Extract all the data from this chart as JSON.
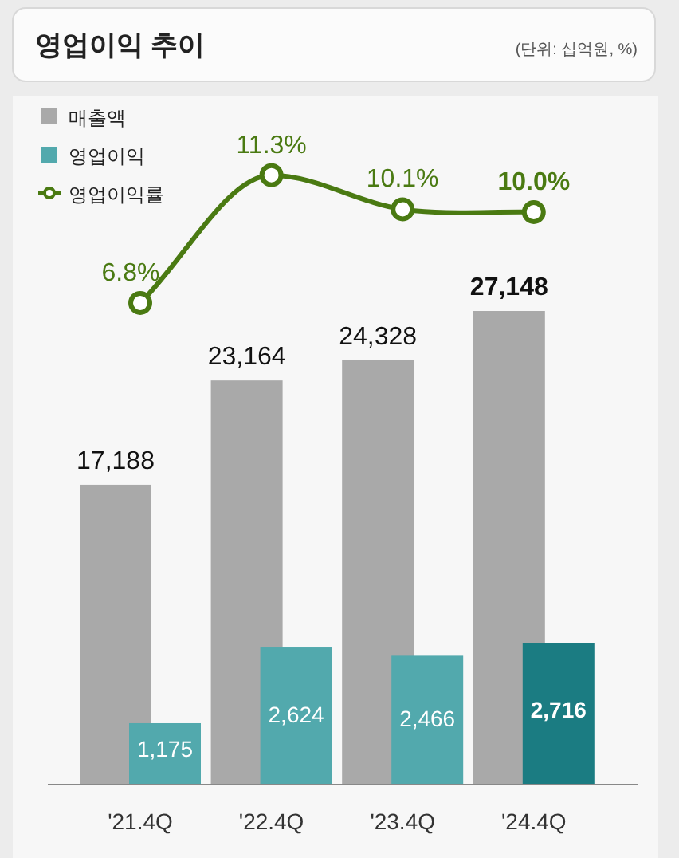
{
  "chart_data": [
    {
      "type": "bar",
      "categories": [
        "'21.4Q",
        "'22.4Q",
        "'23.4Q",
        "'24.4Q"
      ],
      "legend": "top left",
      "series": [
        {
          "name": "매출액",
          "color": "#a9a9a9",
          "values": [
            17188,
            23164,
            24328,
            27148
          ],
          "value_labels": [
            "17,188",
            "23,164",
            "24,328",
            "27,148"
          ]
        },
        {
          "name": "영업이익",
          "axis": "y2",
          "colors": [
            "#52a9ad",
            "#52a9ad",
            "#52a9ad",
            "#1b7c82"
          ],
          "color": "#52a9ad",
          "values": [
            1175,
            2624,
            2466,
            2716
          ],
          "value_labels": [
            "1,175",
            "2,624",
            "2,466",
            "2,716"
          ]
        }
      ]
    },
    {
      "type": "line",
      "title": "영업이익 추이",
      "subtitle": "(단위: 십억원, %)",
      "categories": [
        null,
        null,
        null,
        null
      ],
      "legend": "top left",
      "marker": "circle",
      "series": [
        {
          "name": "영업이익률",
          "color": "#4a7a12",
          "values": [
            6.8,
            11.3,
            10.1,
            10.0
          ],
          "value_labels": [
            "6.8%",
            "11.3%",
            "10.1%",
            "10.0%"
          ]
        }
      ]
    }
  ]
}
